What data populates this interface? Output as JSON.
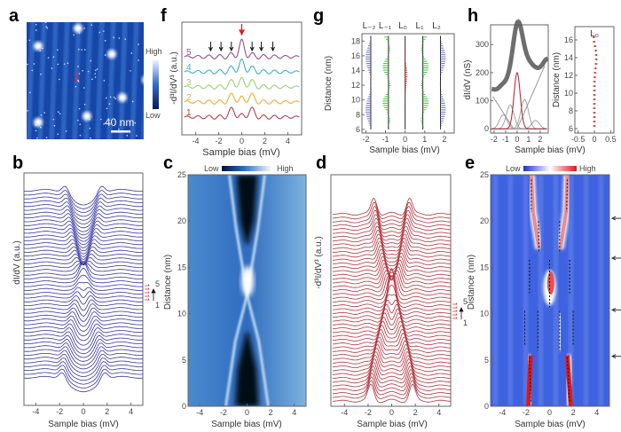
{
  "panels": {
    "a": {
      "label": "a",
      "scale_bar": "40 nm",
      "colorbar_high": "High",
      "colorbar_low": "Low"
    },
    "f": {
      "label": "f",
      "xlabel": "Sample bias (mV)",
      "ylabel": "-d³I/dV³ (a.u.)",
      "curve_labels": [
        "1",
        "2",
        "3",
        "4",
        "5"
      ],
      "curve_colors": [
        "#b04050",
        "#e8b030",
        "#9ad070",
        "#40b0c8",
        "#905090"
      ]
    },
    "g": {
      "label": "g",
      "xlabel": "Sample bias (mV)",
      "ylabel": "Distance (nm)",
      "column_labels": [
        "L₋₂",
        "L₋₁",
        "L₀",
        "L₁",
        "L₂"
      ]
    },
    "h": {
      "label": "h",
      "xlabel": "Sample bias (mV)",
      "ylabel_left": "dI/dV (nS)",
      "ylabel_right": "Distance (nm)",
      "inset_title": "L₀"
    },
    "b": {
      "label": "b",
      "xlabel": "Sample bias (mV)",
      "ylabel": "dI/dV (a.u.)",
      "marker_top": "5",
      "marker_bottom": "1",
      "line_color": "#3535a0"
    },
    "c": {
      "label": "c",
      "xlabel": "Sample bias (mV)",
      "ylabel": "Distance (nm)",
      "colorbar_low": "Low",
      "colorbar_high": "High"
    },
    "d": {
      "label": "d",
      "xlabel": "Sample bias (mV)",
      "ylabel": "-d³I/dV³ (a.u.)",
      "marker_top": "5",
      "marker_bottom": "1",
      "line_color": "#b0303a"
    },
    "e": {
      "label": "e",
      "xlabel": "Sample bias (mV)",
      "ylabel": "Distance (nm)",
      "colorbar_low": "Low",
      "colorbar_high": "High"
    }
  },
  "chart_data": [
    {
      "panel": "a",
      "type": "heatmap",
      "colorbar": [
        "Low",
        "High"
      ],
      "scale_bar": "40 nm"
    },
    {
      "panel": "b",
      "type": "line",
      "xlabel": "Sample bias (mV)",
      "ylabel": "dI/dV (a.u.)",
      "xlim": [
        -5,
        5
      ],
      "xticks": [
        -4,
        -2,
        0,
        2,
        4
      ],
      "n_curves": 50,
      "note_markers": [
        "1",
        "5"
      ]
    },
    {
      "panel": "c",
      "type": "heatmap",
      "xlabel": "Sample bias (mV)",
      "ylabel": "Distance (nm)",
      "xlim": [
        -5,
        5
      ],
      "ylim": [
        0,
        25
      ],
      "xticks": [
        -4,
        -2,
        0,
        2,
        4
      ],
      "yticks": [
        0,
        5,
        10,
        15,
        20,
        25
      ],
      "colorbar": [
        "Low",
        "High"
      ]
    },
    {
      "panel": "d",
      "type": "line",
      "xlabel": "Sample bias (mV)",
      "ylabel": "-d³I/dV³ (a.u.)",
      "xlim": [
        -5,
        5
      ],
      "xticks": [
        -4,
        -2,
        0,
        2,
        4
      ],
      "n_curves": 50
    },
    {
      "panel": "e",
      "type": "heatmap",
      "xlabel": "Sample bias (mV)",
      "ylabel": "Distance (nm)",
      "xlim": [
        -5,
        5
      ],
      "ylim": [
        0,
        25
      ],
      "xticks": [
        -4,
        -2,
        0,
        2,
        4
      ],
      "yticks": [
        0,
        5,
        10,
        15,
        20,
        25
      ],
      "colorbar": [
        "Low",
        "High"
      ],
      "arrow_distances": [
        20.3,
        16,
        10.4,
        5.4
      ]
    },
    {
      "panel": "f",
      "type": "line",
      "xlabel": "Sample bias (mV)",
      "ylabel": "-d³I/dV³ (a.u.)",
      "xlim": [
        -5,
        5
      ],
      "xticks": [
        -4,
        -2,
        0,
        2,
        4
      ],
      "series": [
        {
          "name": "1"
        },
        {
          "name": "2"
        },
        {
          "name": "3"
        },
        {
          "name": "4"
        },
        {
          "name": "5"
        }
      ],
      "arrows_black_mV": [
        -2.7,
        -1.8,
        -0.9,
        0.9,
        1.7,
        2.7
      ],
      "arrow_red_mV": 0
    },
    {
      "panel": "g",
      "type": "scatter",
      "xlabel": "Sample bias (mV)",
      "ylabel": "Distance (nm)",
      "xlim": [
        -2.2,
        2.5
      ],
      "ylim": [
        5.5,
        19
      ],
      "xticks": [
        -2,
        -1,
        0,
        1,
        2
      ],
      "yticks": [
        6,
        8,
        10,
        12,
        14,
        16,
        18
      ],
      "series": [
        {
          "name": "L₋₂",
          "x": -1.75
        },
        {
          "name": "L₋₁",
          "x": -0.85
        },
        {
          "name": "L₀",
          "x": 0
        },
        {
          "name": "L₁",
          "x": 0.9
        },
        {
          "name": "L₂",
          "x": 1.8
        }
      ]
    },
    {
      "panel": "h-left",
      "type": "line",
      "xlabel": "Sample bias (mV)",
      "ylabel": "dI/dV (nS)",
      "xlim": [
        -2.3,
        2.7
      ],
      "ylim": [
        -15,
        370
      ],
      "xticks": [
        -2,
        -1,
        0,
        1,
        2
      ],
      "yticks": [
        0,
        100,
        200,
        300
      ],
      "peak_center_mV": 0.05,
      "peak_value_nS": 350,
      "red_component": {
        "center": 0,
        "height": 200
      },
      "gray_components": [
        {
          "center": -1.2,
          "height": 50
        },
        {
          "center": -0.6,
          "height": 85
        },
        {
          "center": 0.65,
          "height": 105
        },
        {
          "center": 1.6,
          "height": 30
        }
      ]
    },
    {
      "panel": "h-right",
      "type": "scatter",
      "title": "L₀",
      "ylabel": "Distance (nm)",
      "xlim": [
        -0.6,
        0.6
      ],
      "ylim": [
        5.5,
        17.5
      ],
      "xticks": [
        -0.5,
        0,
        0.5
      ],
      "xtick_labels": [
        "-0.5",
        "0",
        "0.5"
      ],
      "yticks": [
        6,
        8,
        10,
        12,
        14,
        16
      ]
    }
  ]
}
